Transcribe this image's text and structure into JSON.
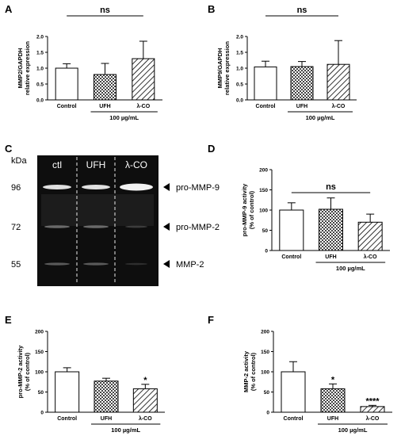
{
  "panel_letters": [
    "A",
    "B",
    "C",
    "D",
    "E",
    "F"
  ],
  "chart_data": [
    {
      "panel": "A",
      "type": "bar",
      "ylabel": "MMP2/GAPDH relative expression",
      "categories": [
        "Control",
        "UFH",
        "λ-CO"
      ],
      "values": [
        1.0,
        0.8,
        1.3
      ],
      "errors": [
        0.14,
        0.35,
        0.55
      ],
      "patterns": [
        "white",
        "checker",
        "hatch"
      ],
      "ylim": [
        0,
        2.0
      ],
      "yticks": [
        "0.0",
        "0.5",
        "1.0",
        "1.5",
        "2.0"
      ],
      "yticks_values": [
        0,
        0.5,
        1.0,
        1.5,
        2.0
      ],
      "group_label": "100 µg/mL",
      "significance": "ns",
      "stars": [
        "",
        "",
        ""
      ]
    },
    {
      "panel": "B",
      "type": "bar",
      "ylabel": "MMP9/GAPDH relative expression",
      "categories": [
        "Control",
        "UFH",
        "λ-CO"
      ],
      "values": [
        1.04,
        1.05,
        1.12
      ],
      "errors": [
        0.18,
        0.16,
        0.75
      ],
      "patterns": [
        "white",
        "checker",
        "hatch"
      ],
      "ylim": [
        0,
        2.0
      ],
      "yticks": [
        "0.0",
        "0.5",
        "1.0",
        "1.5",
        "2.0"
      ],
      "yticks_values": [
        0,
        0.5,
        1.0,
        1.5,
        2.0
      ],
      "group_label": "100 µg/mL",
      "significance": "ns",
      "stars": [
        "",
        "",
        ""
      ]
    },
    {
      "panel": "D",
      "type": "bar",
      "ylabel": "pro-MMP-9 activity (% of control)",
      "categories": [
        "Control",
        "UFH",
        "λ-CO"
      ],
      "values": [
        100,
        102,
        70
      ],
      "errors": [
        18,
        28,
        20
      ],
      "patterns": [
        "white",
        "checker",
        "hatch"
      ],
      "ylim": [
        0,
        200
      ],
      "yticks": [
        "0",
        "50",
        "100",
        "150",
        "200"
      ],
      "yticks_values": [
        0,
        50,
        100,
        150,
        200
      ],
      "group_label": "100 µg/mL",
      "significance": "ns",
      "stars": [
        "",
        "",
        ""
      ]
    },
    {
      "panel": "E",
      "type": "bar",
      "ylabel": "pro-MMP-2 activity (% of control)",
      "categories": [
        "Control",
        "UFH",
        "λ-CO"
      ],
      "values": [
        100,
        77,
        58
      ],
      "errors": [
        10,
        7,
        11
      ],
      "patterns": [
        "white",
        "checker",
        "hatch"
      ],
      "ylim": [
        0,
        200
      ],
      "yticks": [
        "0",
        "50",
        "100",
        "150",
        "200"
      ],
      "yticks_values": [
        0,
        50,
        100,
        150,
        200
      ],
      "group_label": "100 µg/mL",
      "significance": "",
      "stars": [
        "",
        "",
        "*"
      ]
    },
    {
      "panel": "F",
      "type": "bar",
      "ylabel": "MMP-2 activity (% of control)",
      "categories": [
        "Control",
        "UFH",
        "λ-CO"
      ],
      "values": [
        100,
        58,
        14
      ],
      "errors": [
        25,
        12,
        3
      ],
      "patterns": [
        "white",
        "checker",
        "hatch"
      ],
      "ylim": [
        0,
        200
      ],
      "yticks": [
        "0",
        "50",
        "100",
        "150",
        "200"
      ],
      "yticks_values": [
        0,
        50,
        100,
        150,
        200
      ],
      "group_label": "100 µg/mL",
      "significance": "",
      "stars": [
        "",
        "*",
        "****"
      ]
    }
  ],
  "gel": {
    "panel": "C",
    "unit_label": "kDa",
    "lanes": [
      "ctl",
      "UFH",
      "λ-CO"
    ],
    "markers": [
      "96",
      "72",
      "55"
    ],
    "bands": [
      "pro-MMP-9",
      "pro-MMP-2",
      "MMP-2"
    ]
  }
}
